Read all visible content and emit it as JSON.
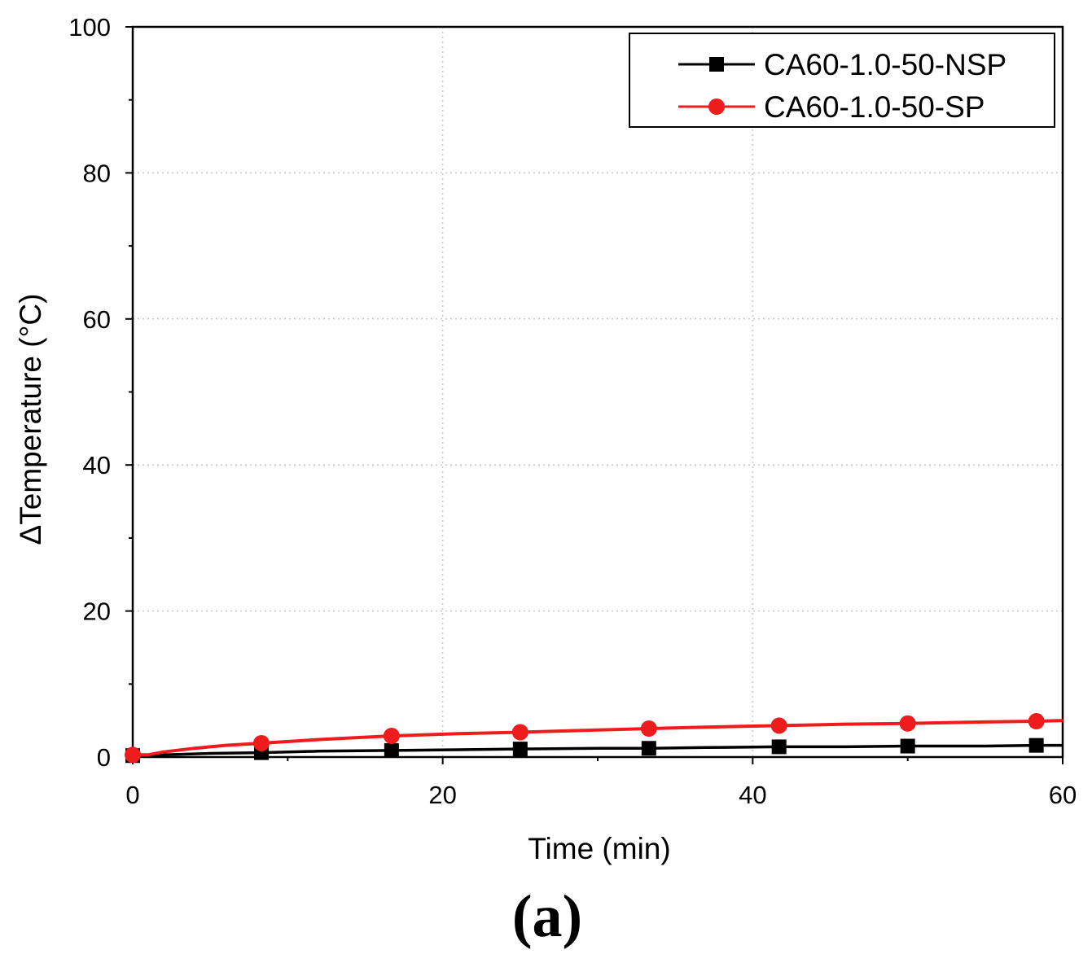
{
  "chart_data": {
    "type": "line",
    "title": "",
    "panel_label": "(a)",
    "xlabel": "Time (min)",
    "ylabel": "ΔTemperature (°C)",
    "xlim": [
      0,
      60
    ],
    "ylim": [
      0,
      100
    ],
    "xticks": [
      0,
      20,
      40,
      60
    ],
    "yticks": [
      0,
      20,
      40,
      60,
      80,
      100
    ],
    "x_minor_step": 10,
    "y_minor_step": 10,
    "grid": true,
    "legend_position": "top-right",
    "series": [
      {
        "name": "CA60-1.0-50-NSP",
        "color": "#000000",
        "marker": "square",
        "x": [
          0,
          2,
          5,
          8.3,
          12,
          16.7,
          21,
          25,
          30,
          33.3,
          37,
          41.7,
          46,
          50,
          55,
          58.3,
          60
        ],
        "y": [
          0.2,
          0.3,
          0.5,
          0.6,
          0.8,
          0.9,
          1.0,
          1.1,
          1.2,
          1.2,
          1.3,
          1.4,
          1.4,
          1.5,
          1.5,
          1.6,
          1.6
        ],
        "marker_x": [
          0,
          8.3,
          16.7,
          25,
          33.3,
          41.7,
          50,
          58.3
        ],
        "marker_y": [
          0.2,
          0.6,
          0.9,
          1.1,
          1.2,
          1.4,
          1.5,
          1.6
        ]
      },
      {
        "name": "CA60-1.0-50-SP",
        "color": "#ee1c1c",
        "marker": "circle",
        "x": [
          0,
          1,
          2,
          4,
          6,
          8.3,
          12,
          16.7,
          21,
          25,
          30,
          33.3,
          37,
          41.7,
          46,
          50,
          55,
          58.3,
          60
        ],
        "y": [
          0.3,
          0.3,
          0.7,
          1.2,
          1.6,
          1.9,
          2.4,
          2.9,
          3.2,
          3.4,
          3.7,
          3.9,
          4.1,
          4.3,
          4.5,
          4.6,
          4.8,
          4.9,
          5.0
        ],
        "marker_x": [
          0,
          8.3,
          16.7,
          25,
          33.3,
          41.7,
          50,
          58.3
        ],
        "marker_y": [
          0.3,
          1.9,
          2.9,
          3.4,
          3.9,
          4.3,
          4.6,
          4.9
        ]
      }
    ]
  }
}
